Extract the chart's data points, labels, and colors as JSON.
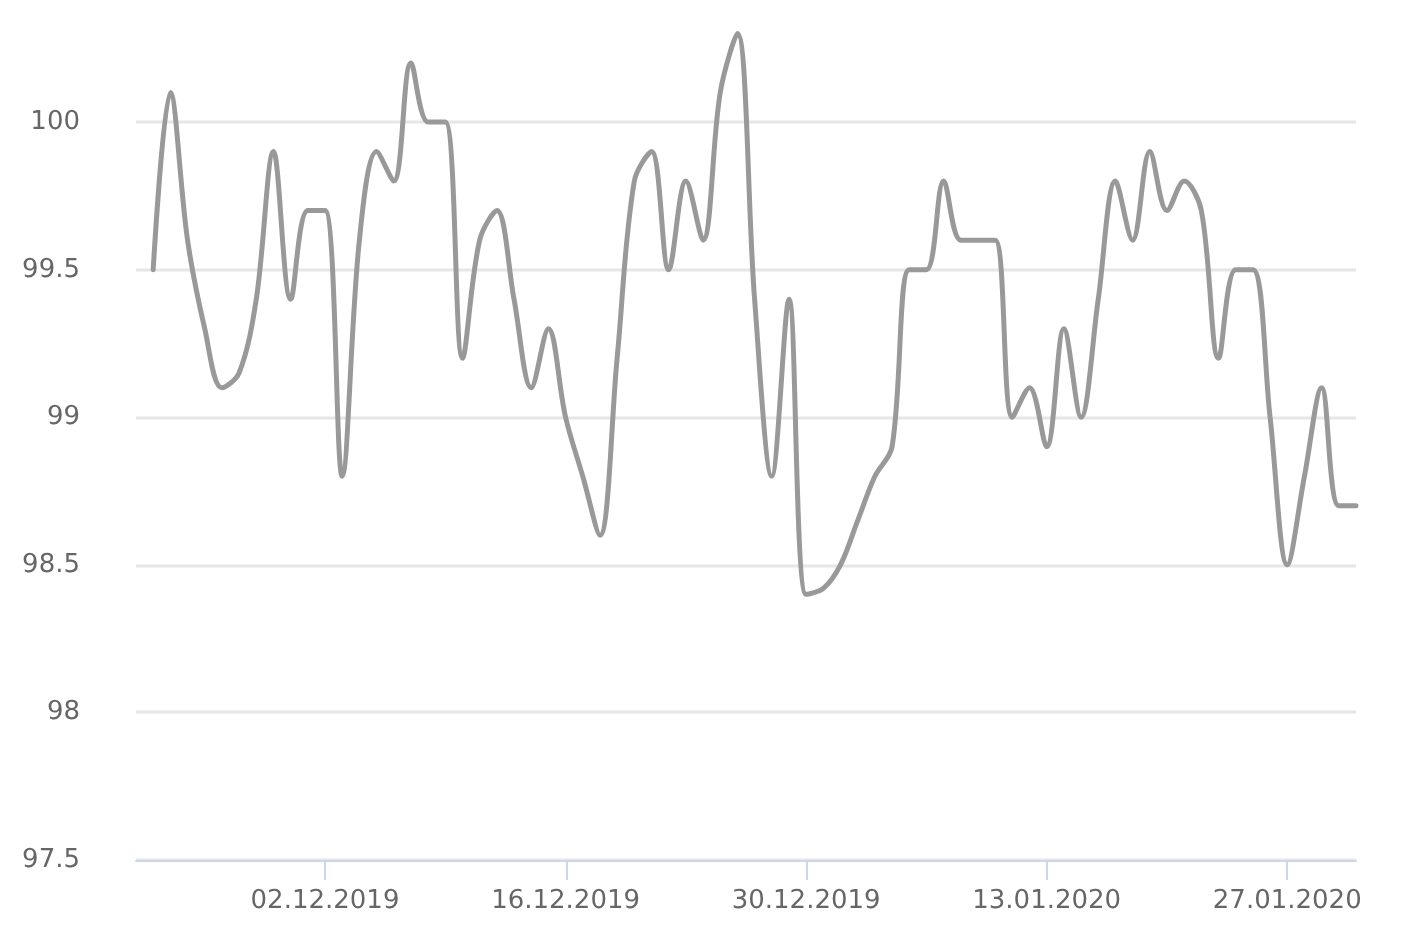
{
  "chart_data": {
    "type": "line",
    "x": [
      "2019-11-22",
      "2019-11-23",
      "2019-11-24",
      "2019-11-25",
      "2019-11-26",
      "2019-11-27",
      "2019-11-28",
      "2019-11-29",
      "2019-11-30",
      "2019-12-01",
      "2019-12-02",
      "2019-12-03",
      "2019-12-04",
      "2019-12-05",
      "2019-12-06",
      "2019-12-07",
      "2019-12-08",
      "2019-12-09",
      "2019-12-10",
      "2019-12-11",
      "2019-12-12",
      "2019-12-13",
      "2019-12-14",
      "2019-12-15",
      "2019-12-16",
      "2019-12-17",
      "2019-12-18",
      "2019-12-19",
      "2019-12-20",
      "2019-12-21",
      "2019-12-22",
      "2019-12-23",
      "2019-12-24",
      "2019-12-25",
      "2019-12-26",
      "2019-12-27",
      "2019-12-28",
      "2019-12-29",
      "2019-12-30",
      "2019-12-31",
      "2020-01-01",
      "2020-01-02",
      "2020-01-03",
      "2020-01-04",
      "2020-01-05",
      "2020-01-06",
      "2020-01-07",
      "2020-01-08",
      "2020-01-09",
      "2020-01-10",
      "2020-01-11",
      "2020-01-12",
      "2020-01-13",
      "2020-01-14",
      "2020-01-15",
      "2020-01-16",
      "2020-01-17",
      "2020-01-18",
      "2020-01-19",
      "2020-01-20",
      "2020-01-21",
      "2020-01-22",
      "2020-01-23",
      "2020-01-24",
      "2020-01-25",
      "2020-01-26",
      "2020-01-27",
      "2020-01-28",
      "2020-01-29",
      "2020-01-30",
      "2020-01-31"
    ],
    "series": [
      {
        "color": "#999999",
        "values": [
          99.5,
          100.1,
          99.6,
          99.3,
          99.1,
          99.15,
          99.4,
          99.9,
          99.4,
          99.7,
          99.7,
          98.8,
          99.6,
          99.9,
          99.8,
          100.2,
          100,
          100,
          99.2,
          99.6,
          99.7,
          99.4,
          99.1,
          99.3,
          99.0,
          98.8,
          98.6,
          99.2,
          99.8,
          99.9,
          99.5,
          99.8,
          99.6,
          100.1,
          100.3,
          99.4,
          98.8,
          99.4,
          98.4,
          98.42,
          98.5,
          98.65,
          98.8,
          98.9,
          99.5,
          99.5,
          99.8,
          99.6,
          99.6,
          99.6,
          99.0,
          99.1,
          98.9,
          99.3,
          99.0,
          99.4,
          99.8,
          99.6,
          99.9,
          99.7,
          99.8,
          99.7,
          99.2,
          99.5,
          99.5,
          99.0,
          98.5,
          98.8,
          99.1,
          98.7,
          98.7
        ]
      }
    ],
    "xlim": [
      "2019-11-21",
      "2020-01-31"
    ],
    "xticks": [
      {
        "value": "2019-12-02",
        "label": "02.12.2019"
      },
      {
        "value": "2019-12-16",
        "label": "16.12.2019"
      },
      {
        "value": "2019-12-30",
        "label": "30.12.2019"
      },
      {
        "value": "2020-01-13",
        "label": "13.01.2020"
      },
      {
        "value": "2020-01-27",
        "label": "27.01.2020"
      }
    ],
    "ylim": [
      97.5,
      100.4
    ],
    "yticks": [
      97.5,
      98,
      98.5,
      99,
      99.5,
      100
    ],
    "grid": "y",
    "marker": "none",
    "line_style": "solid"
  }
}
